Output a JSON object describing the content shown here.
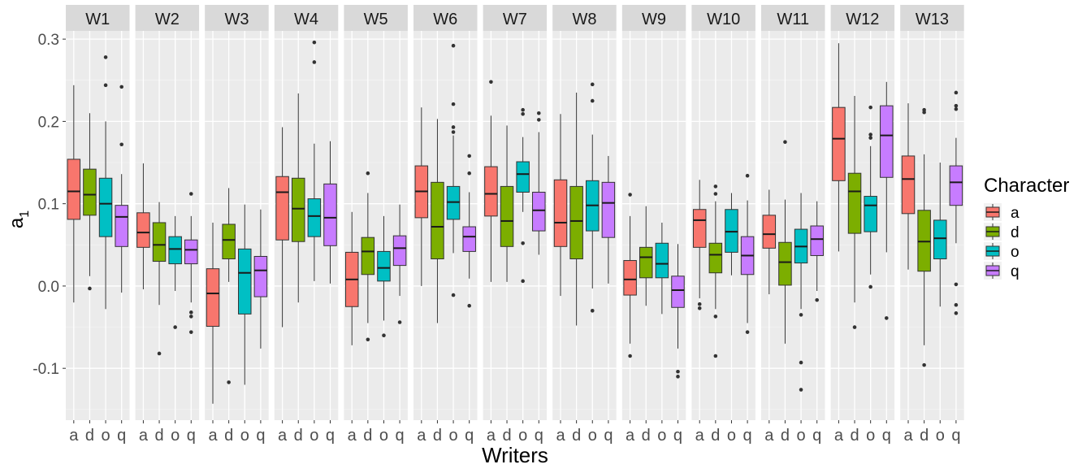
{
  "chart_data": {
    "type": "boxplot",
    "facet_by": "writer",
    "xlabel": "Writers",
    "ylabel": "a",
    "ylabel_subscript": "1",
    "ylim": [
      -0.163,
      0.31
    ],
    "yticks": [
      -0.1,
      0.0,
      0.1,
      0.2,
      0.3
    ],
    "ytick_labels": [
      "-0.1",
      "0.0",
      "0.1",
      "0.2",
      "0.3"
    ],
    "categories": [
      "a",
      "d",
      "o",
      "q"
    ],
    "legend": {
      "title": "Character",
      "position": "right",
      "entries": [
        "a",
        "d",
        "o",
        "q"
      ]
    },
    "colors": {
      "a": "#F8766D",
      "d": "#7CAE00",
      "o": "#00BFC4",
      "q": "#C77CFF"
    },
    "panels": [
      {
        "label": "W1",
        "boxes": [
          {
            "cat": "a",
            "lw": -0.02,
            "q1": 0.081,
            "med": 0.115,
            "q3": 0.154,
            "uw": 0.244,
            "outliers": []
          },
          {
            "cat": "d",
            "lw": 0.012,
            "q1": 0.086,
            "med": 0.111,
            "q3": 0.142,
            "uw": 0.21,
            "outliers": [
              -0.003
            ]
          },
          {
            "cat": "o",
            "lw": -0.028,
            "q1": 0.06,
            "med": 0.1,
            "q3": 0.131,
            "uw": 0.2,
            "outliers": [
              0.278,
              0.244
            ]
          },
          {
            "cat": "q",
            "lw": -0.008,
            "q1": 0.048,
            "med": 0.084,
            "q3": 0.098,
            "uw": 0.136,
            "outliers": [
              0.242,
              0.172
            ]
          }
        ]
      },
      {
        "label": "W2",
        "boxes": [
          {
            "cat": "a",
            "lw": -0.004,
            "q1": 0.047,
            "med": 0.065,
            "q3": 0.089,
            "uw": 0.149,
            "outliers": []
          },
          {
            "cat": "d",
            "lw": -0.023,
            "q1": 0.03,
            "med": 0.05,
            "q3": 0.077,
            "uw": 0.102,
            "outliers": [
              -0.082
            ]
          },
          {
            "cat": "o",
            "lw": -0.006,
            "q1": 0.027,
            "med": 0.045,
            "q3": 0.06,
            "uw": 0.085,
            "outliers": [
              -0.05
            ]
          },
          {
            "cat": "q",
            "lw": -0.02,
            "q1": 0.027,
            "med": 0.044,
            "q3": 0.056,
            "uw": 0.085,
            "outliers": [
              0.112,
              -0.032,
              -0.037,
              -0.056
            ]
          }
        ]
      },
      {
        "label": "W3",
        "boxes": [
          {
            "cat": "a",
            "lw": -0.143,
            "q1": -0.049,
            "med": -0.009,
            "q3": 0.021,
            "uw": 0.077,
            "outliers": []
          },
          {
            "cat": "d",
            "lw": 0.005,
            "q1": 0.033,
            "med": 0.056,
            "q3": 0.075,
            "uw": 0.119,
            "outliers": [
              -0.117
            ]
          },
          {
            "cat": "o",
            "lw": -0.12,
            "q1": -0.034,
            "med": 0.016,
            "q3": 0.045,
            "uw": 0.099,
            "outliers": []
          },
          {
            "cat": "q",
            "lw": -0.076,
            "q1": -0.013,
            "med": 0.019,
            "q3": 0.036,
            "uw": 0.093,
            "outliers": []
          }
        ]
      },
      {
        "label": "W4",
        "boxes": [
          {
            "cat": "a",
            "lw": -0.05,
            "q1": 0.056,
            "med": 0.114,
            "q3": 0.133,
            "uw": 0.193,
            "outliers": []
          },
          {
            "cat": "d",
            "lw": -0.02,
            "q1": 0.054,
            "med": 0.094,
            "q3": 0.131,
            "uw": 0.234,
            "outliers": []
          },
          {
            "cat": "o",
            "lw": 0.006,
            "q1": 0.06,
            "med": 0.085,
            "q3": 0.106,
            "uw": 0.173,
            "outliers": [
              0.296,
              0.272
            ]
          },
          {
            "cat": "q",
            "lw": 0.003,
            "q1": 0.049,
            "med": 0.083,
            "q3": 0.124,
            "uw": 0.176,
            "outliers": []
          }
        ]
      },
      {
        "label": "W5",
        "boxes": [
          {
            "cat": "a",
            "lw": -0.072,
            "q1": -0.025,
            "med": 0.008,
            "q3": 0.041,
            "uw": 0.09,
            "outliers": []
          },
          {
            "cat": "d",
            "lw": -0.045,
            "q1": 0.014,
            "med": 0.042,
            "q3": 0.059,
            "uw": 0.113,
            "outliers": [
              0.137,
              -0.065
            ]
          },
          {
            "cat": "o",
            "lw": -0.042,
            "q1": 0.006,
            "med": 0.022,
            "q3": 0.042,
            "uw": 0.085,
            "outliers": [
              -0.06
            ]
          },
          {
            "cat": "q",
            "lw": -0.012,
            "q1": 0.025,
            "med": 0.046,
            "q3": 0.061,
            "uw": 0.099,
            "outliers": [
              -0.044
            ]
          }
        ]
      },
      {
        "label": "W6",
        "boxes": [
          {
            "cat": "a",
            "lw": 0.0,
            "q1": 0.083,
            "med": 0.115,
            "q3": 0.146,
            "uw": 0.217,
            "outliers": []
          },
          {
            "cat": "d",
            "lw": -0.045,
            "q1": 0.033,
            "med": 0.072,
            "q3": 0.126,
            "uw": 0.203,
            "outliers": []
          },
          {
            "cat": "o",
            "lw": 0.04,
            "q1": 0.081,
            "med": 0.102,
            "q3": 0.121,
            "uw": 0.183,
            "outliers": [
              0.292,
              0.221,
              0.193,
              0.187,
              -0.011
            ]
          },
          {
            "cat": "q",
            "lw": 0.009,
            "q1": 0.042,
            "med": 0.06,
            "q3": 0.072,
            "uw": 0.114,
            "outliers": [
              0.158,
              0.137,
              -0.024
            ]
          }
        ]
      },
      {
        "label": "W7",
        "boxes": [
          {
            "cat": "a",
            "lw": 0.005,
            "q1": 0.085,
            "med": 0.112,
            "q3": 0.145,
            "uw": 0.207,
            "outliers": [
              0.248
            ]
          },
          {
            "cat": "d",
            "lw": 0.005,
            "q1": 0.048,
            "med": 0.079,
            "q3": 0.121,
            "uw": 0.195,
            "outliers": []
          },
          {
            "cat": "o",
            "lw": 0.09,
            "q1": 0.114,
            "med": 0.136,
            "q3": 0.151,
            "uw": 0.181,
            "outliers": [
              0.214,
              0.209,
              0.052,
              0.006
            ]
          },
          {
            "cat": "q",
            "lw": 0.038,
            "q1": 0.067,
            "med": 0.092,
            "q3": 0.114,
            "uw": 0.187,
            "outliers": [
              0.21,
              0.202
            ]
          }
        ]
      },
      {
        "label": "W8",
        "boxes": [
          {
            "cat": "a",
            "lw": -0.012,
            "q1": 0.048,
            "med": 0.077,
            "q3": 0.129,
            "uw": 0.209,
            "outliers": []
          },
          {
            "cat": "d",
            "lw": -0.048,
            "q1": 0.033,
            "med": 0.079,
            "q3": 0.121,
            "uw": 0.235,
            "outliers": []
          },
          {
            "cat": "o",
            "lw": -0.003,
            "q1": 0.067,
            "med": 0.098,
            "q3": 0.128,
            "uw": 0.184,
            "outliers": [
              0.245,
              0.225,
              -0.03
            ]
          },
          {
            "cat": "q",
            "lw": 0.003,
            "q1": 0.059,
            "med": 0.101,
            "q3": 0.126,
            "uw": 0.158,
            "outliers": []
          }
        ]
      },
      {
        "label": "W9",
        "boxes": [
          {
            "cat": "a",
            "lw": -0.07,
            "q1": -0.011,
            "med": 0.008,
            "q3": 0.031,
            "uw": 0.085,
            "outliers": [
              0.111,
              -0.085
            ]
          },
          {
            "cat": "d",
            "lw": -0.024,
            "q1": 0.01,
            "med": 0.035,
            "q3": 0.047,
            "uw": 0.097,
            "outliers": []
          },
          {
            "cat": "o",
            "lw": -0.034,
            "q1": 0.01,
            "med": 0.027,
            "q3": 0.052,
            "uw": 0.077,
            "outliers": []
          },
          {
            "cat": "q",
            "lw": -0.076,
            "q1": -0.026,
            "med": -0.005,
            "q3": 0.012,
            "uw": 0.051,
            "outliers": [
              -0.104,
              -0.11
            ]
          }
        ]
      },
      {
        "label": "W10",
        "boxes": [
          {
            "cat": "a",
            "lw": -0.015,
            "q1": 0.047,
            "med": 0.08,
            "q3": 0.093,
            "uw": 0.129,
            "outliers": [
              -0.022,
              -0.027
            ]
          },
          {
            "cat": "d",
            "lw": -0.028,
            "q1": 0.016,
            "med": 0.038,
            "q3": 0.052,
            "uw": 0.103,
            "outliers": [
              0.121,
              0.112,
              -0.037,
              -0.085
            ]
          },
          {
            "cat": "o",
            "lw": 0.013,
            "q1": 0.041,
            "med": 0.066,
            "q3": 0.093,
            "uw": 0.113,
            "outliers": []
          },
          {
            "cat": "q",
            "lw": -0.045,
            "q1": 0.014,
            "med": 0.037,
            "q3": 0.06,
            "uw": 0.104,
            "outliers": [
              0.134,
              -0.056
            ]
          }
        ]
      },
      {
        "label": "W11",
        "boxes": [
          {
            "cat": "a",
            "lw": -0.01,
            "q1": 0.046,
            "med": 0.063,
            "q3": 0.086,
            "uw": 0.117,
            "outliers": []
          },
          {
            "cat": "d",
            "lw": -0.07,
            "q1": 0.001,
            "med": 0.029,
            "q3": 0.053,
            "uw": 0.105,
            "outliers": [
              0.175
            ]
          },
          {
            "cat": "o",
            "lw": -0.028,
            "q1": 0.028,
            "med": 0.048,
            "q3": 0.069,
            "uw": 0.113,
            "outliers": [
              -0.035,
              -0.093,
              -0.126
            ]
          },
          {
            "cat": "q",
            "lw": -0.006,
            "q1": 0.037,
            "med": 0.057,
            "q3": 0.073,
            "uw": 0.103,
            "outliers": [
              -0.017
            ]
          }
        ]
      },
      {
        "label": "W12",
        "boxes": [
          {
            "cat": "a",
            "lw": 0.042,
            "q1": 0.128,
            "med": 0.179,
            "q3": 0.217,
            "uw": 0.295,
            "outliers": []
          },
          {
            "cat": "d",
            "lw": -0.02,
            "q1": 0.064,
            "med": 0.115,
            "q3": 0.137,
            "uw": 0.231,
            "outliers": [
              -0.05
            ]
          },
          {
            "cat": "o",
            "lw": 0.014,
            "q1": 0.066,
            "med": 0.098,
            "q3": 0.109,
            "uw": 0.17,
            "outliers": [
              0.217,
              0.184,
              0.18,
              -0.001
            ]
          },
          {
            "cat": "q",
            "lw": 0.041,
            "q1": 0.132,
            "med": 0.183,
            "q3": 0.219,
            "uw": 0.248,
            "outliers": [
              -0.039
            ]
          }
        ]
      },
      {
        "label": "W13",
        "boxes": [
          {
            "cat": "a",
            "lw": 0.02,
            "q1": 0.088,
            "med": 0.13,
            "q3": 0.158,
            "uw": 0.222,
            "outliers": []
          },
          {
            "cat": "d",
            "lw": -0.072,
            "q1": 0.018,
            "med": 0.054,
            "q3": 0.092,
            "uw": 0.16,
            "outliers": [
              0.214,
              0.211,
              -0.096
            ]
          },
          {
            "cat": "o",
            "lw": -0.025,
            "q1": 0.033,
            "med": 0.058,
            "q3": 0.08,
            "uw": 0.15,
            "outliers": []
          },
          {
            "cat": "q",
            "lw": 0.052,
            "q1": 0.098,
            "med": 0.126,
            "q3": 0.146,
            "uw": 0.18,
            "outliers": [
              0.235,
              0.219,
              0.215,
              0.002,
              -0.023,
              -0.033
            ]
          }
        ]
      }
    ]
  }
}
